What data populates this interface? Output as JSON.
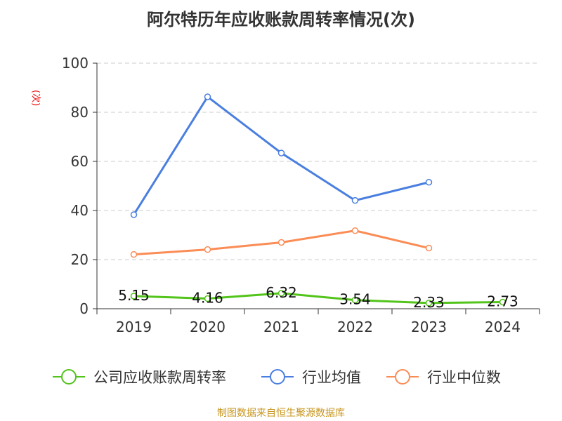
{
  "chart_data": {
    "type": "line",
    "title": "阿尔特历年应收账款周转率情况(次)",
    "ylabel": "(次)",
    "xlabel": "",
    "ylim": [
      0,
      100
    ],
    "yticks": [
      "0",
      "20",
      "40",
      "60",
      "80",
      "100"
    ],
    "categories": [
      "2019",
      "2020",
      "2021",
      "2022",
      "2023",
      "2024"
    ],
    "grid": true,
    "legend_position": "bottom",
    "series": [
      {
        "name": "公司应收账款周转率",
        "color": "#52c41a",
        "values": [
          5.15,
          4.16,
          6.32,
          3.54,
          2.33,
          2.73
        ],
        "labels": [
          "5.15",
          "4.16",
          "6.32",
          "3.54",
          "2.33",
          "2.73"
        ]
      },
      {
        "name": "行业均值",
        "color": "#4a7fe0",
        "values": [
          38.3,
          86.3,
          63.4,
          44.1,
          51.5,
          null
        ]
      },
      {
        "name": "行业中位数",
        "color": "#fb8c55",
        "values": [
          22.1,
          24.1,
          27.0,
          31.8,
          24.7,
          null
        ]
      }
    ]
  },
  "source": "制图数据来自恒生聚源数据库"
}
